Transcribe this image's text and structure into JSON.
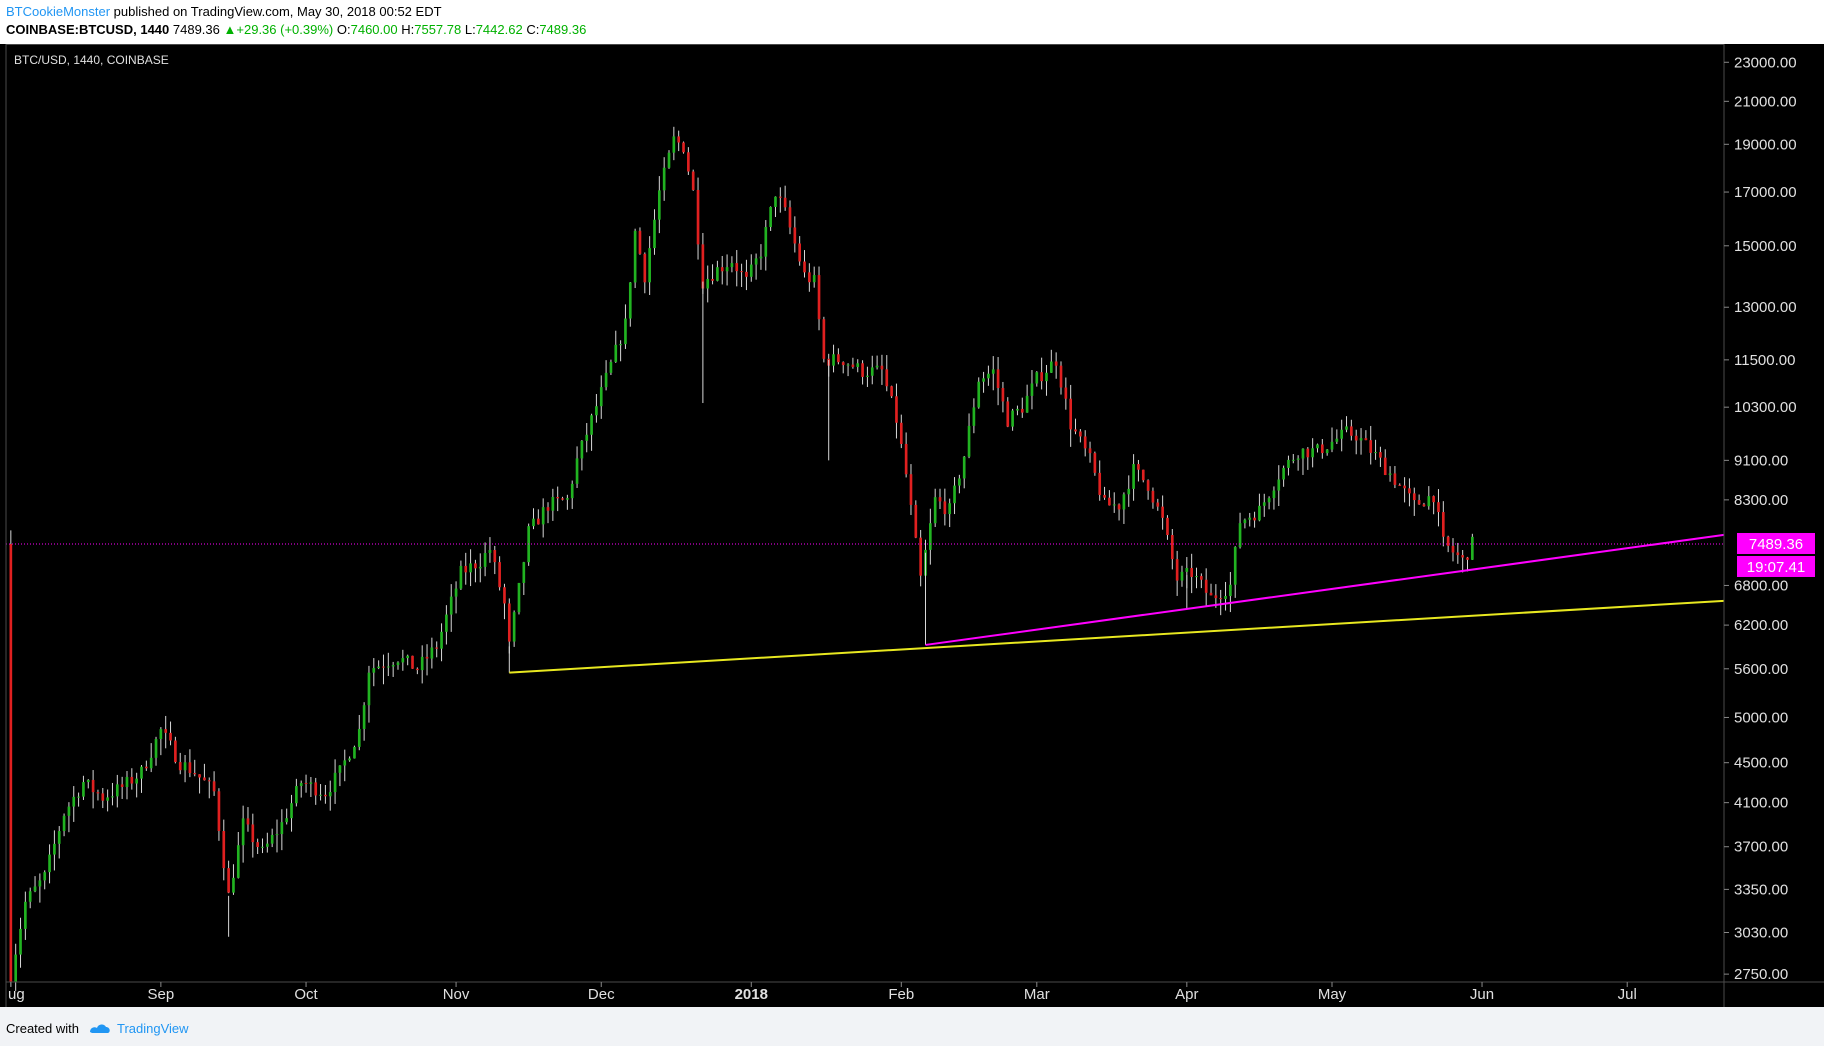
{
  "header": {
    "author": "BTCookieMonster",
    "published_text": "published on TradingView.com, May 30, 2018 00:52 EDT",
    "symbol": "COINBASE:BTCUSD, 1440",
    "last": "7489.36",
    "change": "+29.36 (+0.39%)",
    "open_label": "O:",
    "open": "7460.00",
    "high_label": "H:",
    "high": "7557.78",
    "low_label": "L:",
    "low": "7442.62",
    "close_label": "C:",
    "close": "7489.36"
  },
  "footer": {
    "created_with": "Created with",
    "brand": "TradingView"
  },
  "chart_data": {
    "type": "candlestick",
    "title": "BTC/USD, 1440, COINBASE",
    "y_scale": "log",
    "ylim": [
      2700,
      24000
    ],
    "y_ticks": [
      2750,
      3030,
      3350,
      3700,
      4100,
      4500,
      5000,
      5600,
      6200,
      6800,
      8300,
      9100,
      10300,
      11500,
      13000,
      15000,
      17000,
      19000,
      21000,
      23000
    ],
    "y_tick_labels": [
      "2750.00",
      "3030.00",
      "3350.00",
      "3700.00",
      "4100.00",
      "4500.00",
      "5000.00",
      "5600.00",
      "6200.00",
      "6800.00",
      "8300.00",
      "9100.00",
      "10300.00",
      "11500.00",
      "13000.00",
      "15000.00",
      "17000.00",
      "19000.00",
      "21000.00",
      "23000.00"
    ],
    "x_range": [
      "2017-07-31",
      "2018-07-21"
    ],
    "x_ticks": [
      {
        "date": "2017-08-01",
        "label": "ug",
        "bold": false
      },
      {
        "date": "2017-09-01",
        "label": "Sep",
        "bold": false
      },
      {
        "date": "2017-10-01",
        "label": "Oct",
        "bold": false
      },
      {
        "date": "2017-11-01",
        "label": "Nov",
        "bold": false
      },
      {
        "date": "2017-12-01",
        "label": "Dec",
        "bold": false
      },
      {
        "date": "2018-01-01",
        "label": "2018",
        "bold": true
      },
      {
        "date": "2018-02-01",
        "label": "Feb",
        "bold": false
      },
      {
        "date": "2018-03-01",
        "label": "Mar",
        "bold": false
      },
      {
        "date": "2018-04-01",
        "label": "Apr",
        "bold": false
      },
      {
        "date": "2018-05-01",
        "label": "May",
        "bold": false
      },
      {
        "date": "2018-06-01",
        "label": "Jun",
        "bold": false
      },
      {
        "date": "2018-07-01",
        "label": "Jul",
        "bold": false
      }
    ],
    "price_path": [
      [
        "2017-08-01",
        2750
      ],
      [
        "2017-08-04",
        3250
      ],
      [
        "2017-08-08",
        3450
      ],
      [
        "2017-08-12",
        4000
      ],
      [
        "2017-08-16",
        4300
      ],
      [
        "2017-08-20",
        4150
      ],
      [
        "2017-08-24",
        4250
      ],
      [
        "2017-08-28",
        4400
      ],
      [
        "2017-09-01",
        4850
      ],
      [
        "2017-09-05",
        4500
      ],
      [
        "2017-09-08",
        4400
      ],
      [
        "2017-09-12",
        4200
      ],
      [
        "2017-09-15",
        3300
      ],
      [
        "2017-09-18",
        3900
      ],
      [
        "2017-09-22",
        3650
      ],
      [
        "2017-09-26",
        3900
      ],
      [
        "2017-09-30",
        4300
      ],
      [
        "2017-10-05",
        4200
      ],
      [
        "2017-10-08",
        4400
      ],
      [
        "2017-10-12",
        4850
      ],
      [
        "2017-10-14",
        5600
      ],
      [
        "2017-10-20",
        5750
      ],
      [
        "2017-10-24",
        5600
      ],
      [
        "2017-10-28",
        5900
      ],
      [
        "2017-11-02",
        7000
      ],
      [
        "2017-11-06",
        7200
      ],
      [
        "2017-11-08",
        7400
      ],
      [
        "2017-11-11",
        6500
      ],
      [
        "2017-11-12",
        5900
      ],
      [
        "2017-11-16",
        7700
      ],
      [
        "2017-11-20",
        8200
      ],
      [
        "2017-11-24",
        8300
      ],
      [
        "2017-11-26",
        9100
      ],
      [
        "2017-11-29",
        10000
      ],
      [
        "2017-12-02",
        11000
      ],
      [
        "2017-12-06",
        12500
      ],
      [
        "2017-12-08",
        15500
      ],
      [
        "2017-12-10",
        14000
      ],
      [
        "2017-12-13",
        17000
      ],
      [
        "2017-12-16",
        19200
      ],
      [
        "2017-12-18",
        18900
      ],
      [
        "2017-12-20",
        17000
      ],
      [
        "2017-12-22",
        13800
      ],
      [
        "2017-12-25",
        14200
      ],
      [
        "2017-12-28",
        14500
      ],
      [
        "2017-12-31",
        13800
      ],
      [
        "2018-01-03",
        14800
      ],
      [
        "2018-01-06",
        17000
      ],
      [
        "2018-01-08",
        16200
      ],
      [
        "2018-01-12",
        14000
      ],
      [
        "2018-01-14",
        13800
      ],
      [
        "2018-01-16",
        11500
      ],
      [
        "2018-01-20",
        11500
      ],
      [
        "2018-01-24",
        11200
      ],
      [
        "2018-01-28",
        11200
      ],
      [
        "2018-01-31",
        10000
      ],
      [
        "2018-02-02",
        8800
      ],
      [
        "2018-02-05",
        6900
      ],
      [
        "2018-02-08",
        8300
      ],
      [
        "2018-02-11",
        8100
      ],
      [
        "2018-02-14",
        9200
      ],
      [
        "2018-02-17",
        11000
      ],
      [
        "2018-02-20",
        11200
      ],
      [
        "2018-02-23",
        10000
      ],
      [
        "2018-02-26",
        10300
      ],
      [
        "2018-03-01",
        11000
      ],
      [
        "2018-03-05",
        11500
      ],
      [
        "2018-03-08",
        9900
      ],
      [
        "2018-03-12",
        9100
      ],
      [
        "2018-03-15",
        8200
      ],
      [
        "2018-03-18",
        8200
      ],
      [
        "2018-03-21",
        8900
      ],
      [
        "2018-03-24",
        8600
      ],
      [
        "2018-03-27",
        7900
      ],
      [
        "2018-03-30",
        6900
      ],
      [
        "2018-04-02",
        7000
      ],
      [
        "2018-04-06",
        6600
      ],
      [
        "2018-04-10",
        6800
      ],
      [
        "2018-04-12",
        7900
      ],
      [
        "2018-04-16",
        8100
      ],
      [
        "2018-04-20",
        8800
      ],
      [
        "2018-04-24",
        9300
      ],
      [
        "2018-04-28",
        9300
      ],
      [
        "2018-05-04",
        9700
      ],
      [
        "2018-05-06",
        9650
      ],
      [
        "2018-05-10",
        9200
      ],
      [
        "2018-05-14",
        8700
      ],
      [
        "2018-05-18",
        8200
      ],
      [
        "2018-05-22",
        8400
      ],
      [
        "2018-05-24",
        7500
      ],
      [
        "2018-05-26",
        7350
      ],
      [
        "2018-05-28",
        7200
      ],
      [
        "2018-05-30",
        7489.36
      ]
    ],
    "trendlines": [
      {
        "color": "#e8e820",
        "from": [
          "2017-11-12",
          5550
        ],
        "to": [
          "2018-07-21",
          6560
        ]
      },
      {
        "color": "#ff00ff",
        "from": [
          "2018-02-06",
          5920
        ],
        "to": [
          "2018-07-21",
          7650
        ]
      }
    ],
    "last_price_line": {
      "value": 7489.36,
      "color": "#ff00ff"
    },
    "price_label": "7489.36",
    "countdown_label": "19:07.41"
  },
  "colors": {
    "up": "#21b321",
    "down": "#e02020",
    "neutral": "#d8d8d8",
    "axis_text": "#e0e0e0",
    "magenta": "#ff00ff"
  }
}
